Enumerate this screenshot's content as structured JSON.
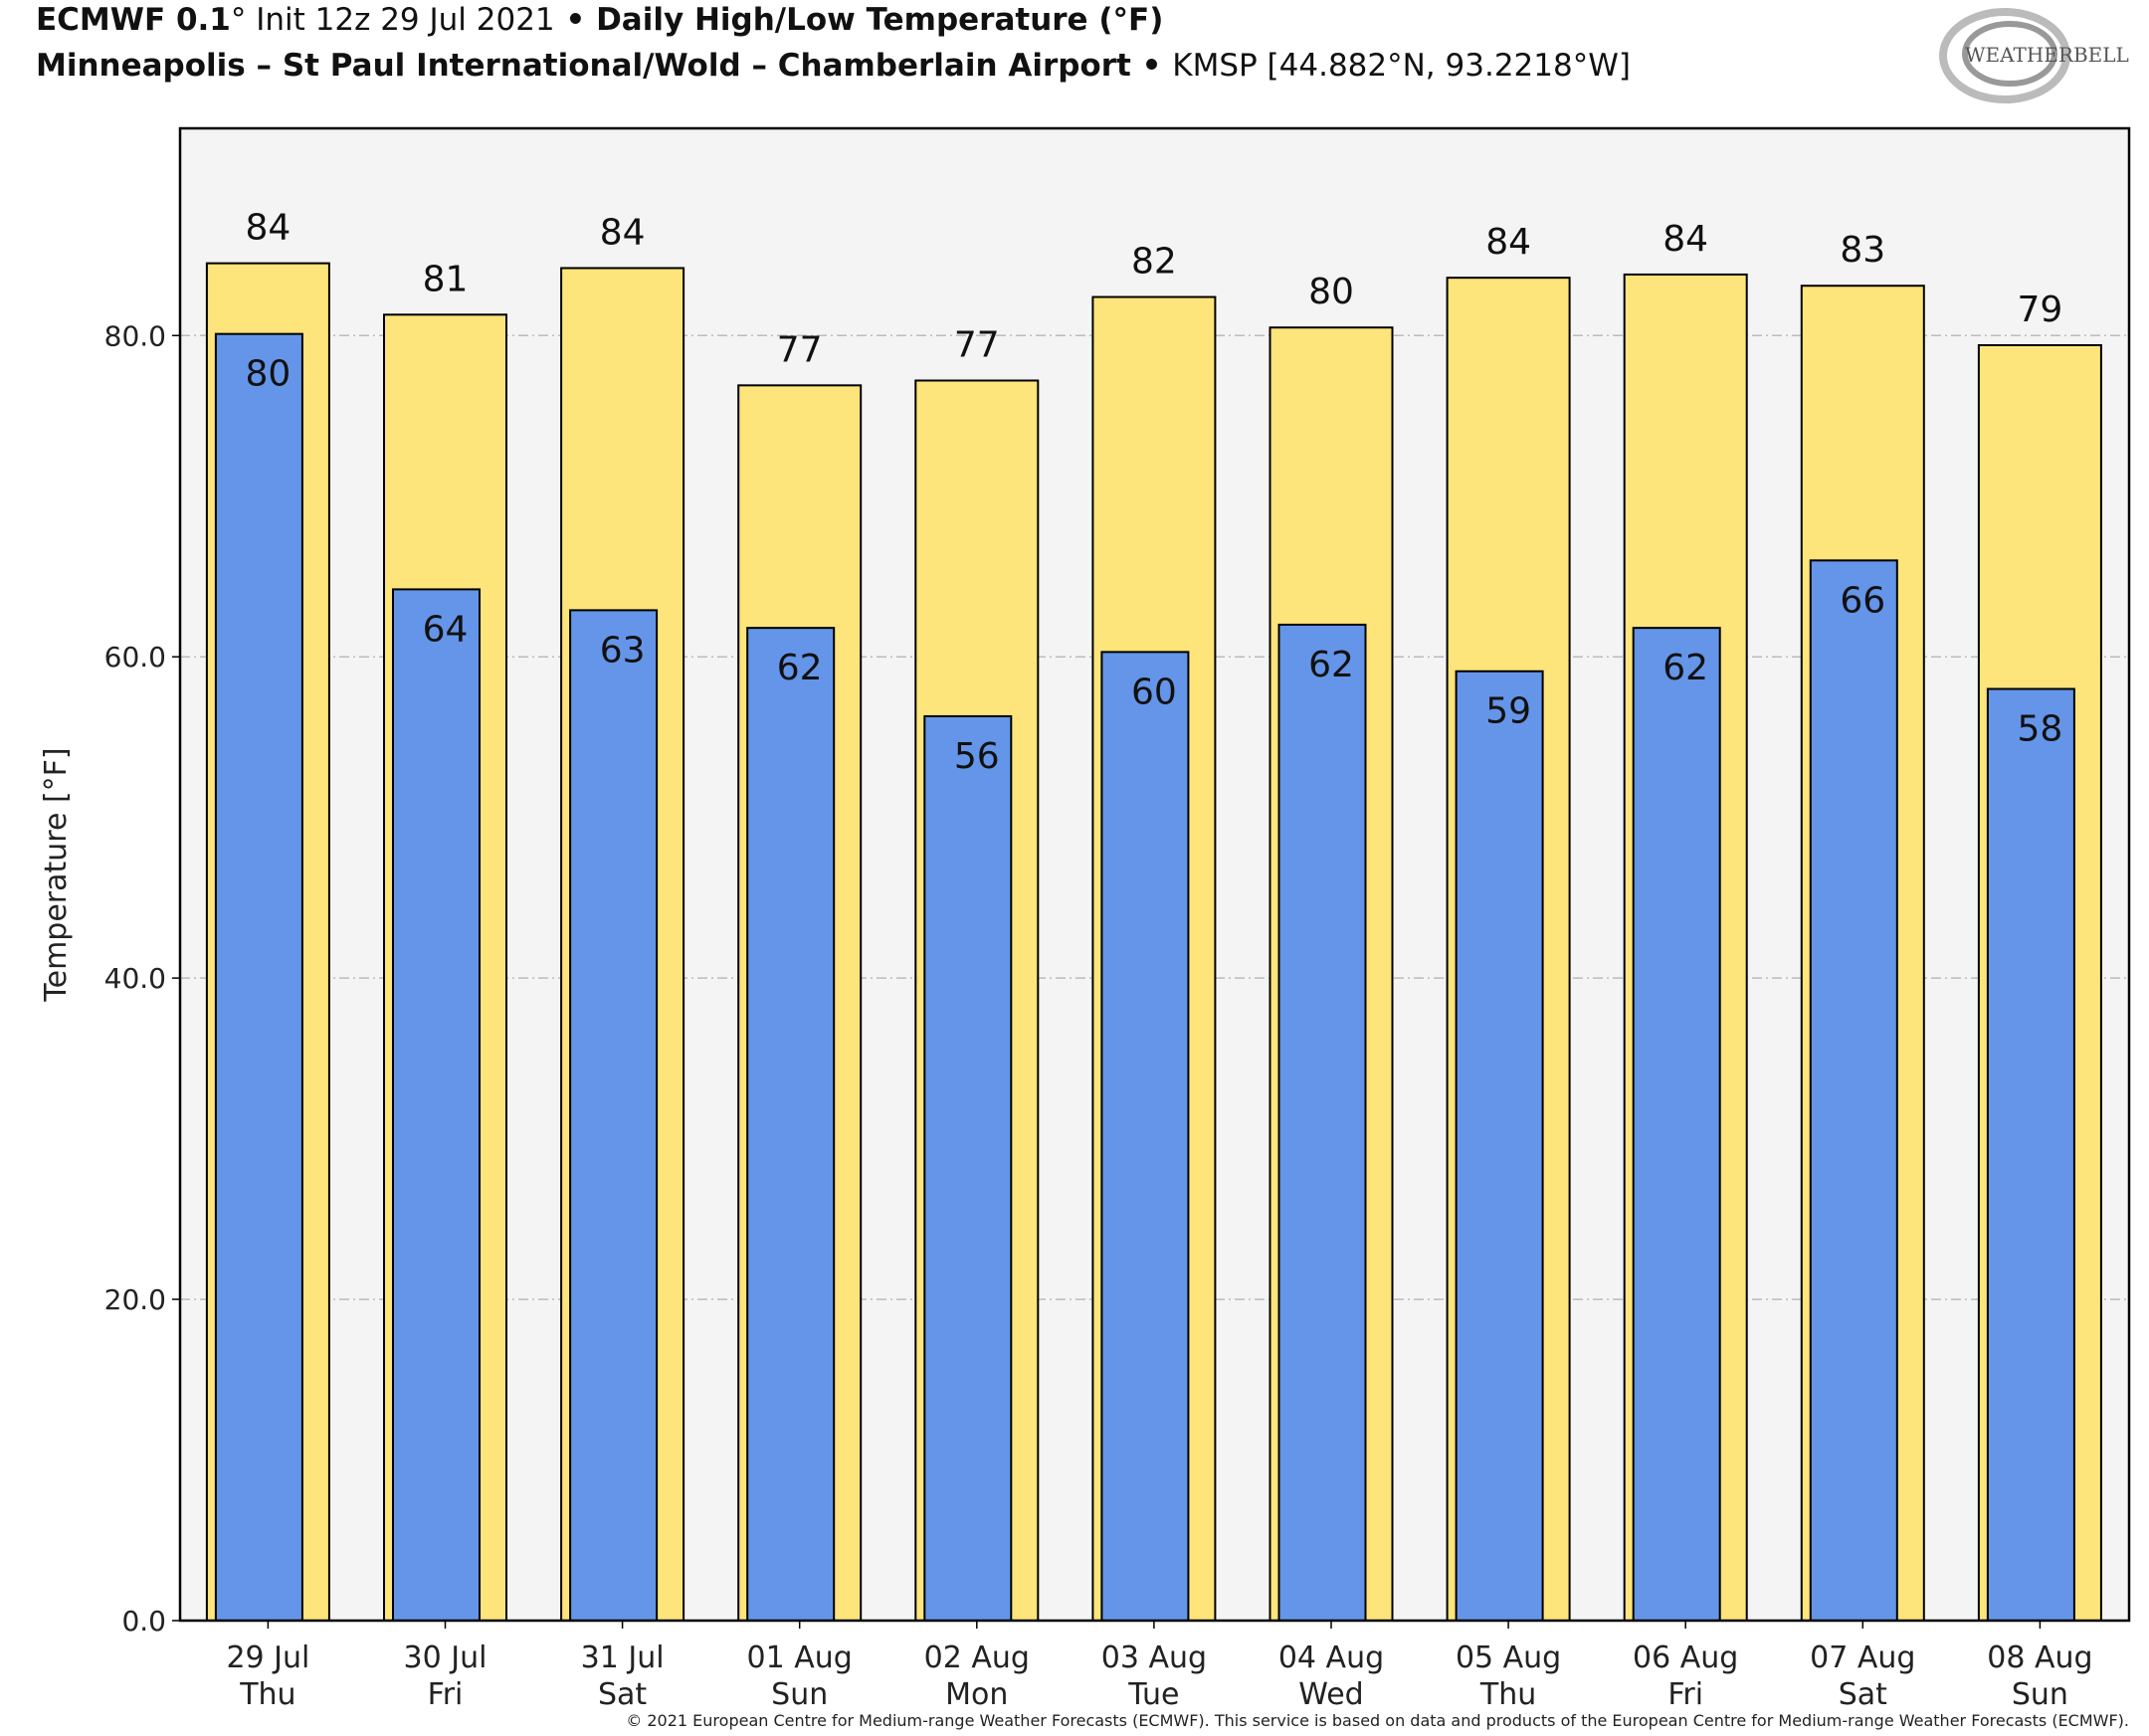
{
  "header": {
    "model": "ECMWF 0.1",
    "deg": "°",
    "init": "Init 12z 29 Jul 2021",
    "sep": " • ",
    "product": "Daily High/Low Temperature (°F)",
    "station": "Minneapolis – St Paul International/Wold – Chamberlain Airport",
    "station_code": "KMSP [44.882°N, 93.2218°W]"
  },
  "logo": {
    "text": "WEATHERBELL"
  },
  "footer": "© 2021 European Centre for Medium-range Weather Forecasts (ECMWF). This service is based on data and products of the European Centre for Medium-range Weather Forecasts (ECMWF).",
  "colors": {
    "high": "#fde47b",
    "low": "#6495e8",
    "plot_bg": "#f4f4f4"
  },
  "chart_data": {
    "type": "bar",
    "ylabel": "Temperature [°F]",
    "ylim": [
      0,
      92.9
    ],
    "yticks": [
      0,
      20,
      40,
      60,
      80
    ],
    "ytick_labels": [
      "0.0",
      "20.0",
      "40.0",
      "60.0",
      "80.0"
    ],
    "grid": true,
    "categories": [
      "29 Jul",
      "30 Jul",
      "31 Jul",
      "01 Aug",
      "02 Aug",
      "03 Aug",
      "04 Aug",
      "05 Aug",
      "06 Aug",
      "07 Aug",
      "08 Aug"
    ],
    "weekdays": [
      "Thu",
      "Fri",
      "Sat",
      "Sun",
      "Mon",
      "Tue",
      "Wed",
      "Thu",
      "Fri",
      "Sat",
      "Sun"
    ],
    "series": [
      {
        "name": "High",
        "values": [
          84.5,
          81.3,
          84.2,
          76.9,
          77.2,
          82.4,
          80.5,
          83.6,
          83.8,
          83.1,
          79.4
        ],
        "labels": [
          "84",
          "81",
          "84",
          "77",
          "77",
          "82",
          "80",
          "84",
          "84",
          "83",
          "79"
        ]
      },
      {
        "name": "Low",
        "values": [
          80.1,
          64.2,
          62.9,
          61.8,
          56.3,
          60.3,
          62.0,
          59.1,
          61.8,
          66.0,
          58.0
        ],
        "labels": [
          "80",
          "64",
          "63",
          "62",
          "56",
          "60",
          "62",
          "59",
          "62",
          "66",
          "58"
        ]
      }
    ]
  }
}
